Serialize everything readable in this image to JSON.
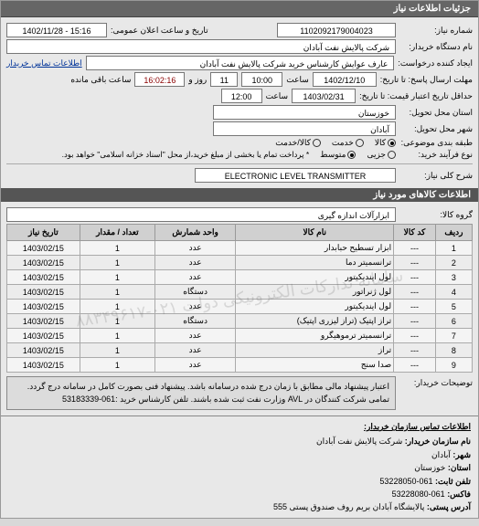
{
  "title_bar": "جزئیات اطلاعات نیاز",
  "header": {
    "req_no_label": "شماره نیاز:",
    "req_no": "1102092179004023",
    "announce_label": "تاریخ و ساعت اعلان عمومی:",
    "announce_value": "15:16 - 1402/11/28",
    "buyer_label": "نام دستگاه خریدار:",
    "buyer_value": "شرکت پالایش نفت آبادان",
    "creator_label": "ایجاد کننده درخواست:",
    "creator_value": "عارف عوایش کارشناس خرید شرکت پالایش نفت آبادان",
    "contact_link_label": "اطلاعات تماس خریدار",
    "deadline_send_label": "مهلت ارسال پاسخ: تا تاریخ:",
    "deadline_send_date": "1402/12/10",
    "deadline_send_time_label": "ساعت",
    "deadline_send_time": "10:00",
    "remain_label1": "روز و",
    "remain_days": "11",
    "remain_label2": "ساعت باقی مانده",
    "remain_time": "16:02:16",
    "validity_label": "حداقل تاریخ اعتبار قیمت: تا تاریخ:",
    "validity_date": "1403/02/31",
    "validity_time_label": "ساعت",
    "validity_time": "12:00",
    "province_label": "استان محل تحویل:",
    "province_value": "خوزستان",
    "city_label": "شهر محل تحویل:",
    "city_value": "آبادان",
    "group_label": "طبقه بندی موضوعی:",
    "radio_goods": "کالا",
    "radio_service": "خدمت",
    "radio_goods_service": "کالا/خدمت",
    "process_label": "نوع فرآیند خرید:",
    "radio_small": "جزیی",
    "radio_medium": "متوسط",
    "process_note": "* پرداخت تمام یا بخشی از مبلغ خرید،از محل \"اسناد خزانه اسلامی\" خواهد بود.",
    "need_title_label": "شرح کلی نیاز:",
    "need_title_value": "ELECTRONIC LEVEL TRANSMITTER"
  },
  "goods_section_title": "اطلاعات کالاهای مورد نیاز",
  "goods_group_label": "گروه کالا:",
  "goods_group_value": "ابزارآلات اندازه گیری",
  "table": {
    "columns": [
      "ردیف",
      "کد کالا",
      "نام کالا",
      "واحد شمارش",
      "تعداد / مقدار",
      "تاریخ نیاز"
    ],
    "rows": [
      [
        "1",
        "---",
        "ابزار تسطیح حبابدار",
        "عدد",
        "1",
        "1403/02/15"
      ],
      [
        "2",
        "---",
        "ترانسمیتر دما",
        "عدد",
        "1",
        "1403/02/15"
      ],
      [
        "3",
        "---",
        "لول ایندیکیتور",
        "عدد",
        "1",
        "1403/02/15"
      ],
      [
        "4",
        "---",
        "لول ژنراتور",
        "دستگاه",
        "1",
        "1403/02/15"
      ],
      [
        "5",
        "---",
        "لول ایندیکیتور",
        "عدد",
        "1",
        "1403/02/15"
      ],
      [
        "6",
        "---",
        "تراز اپتیک (تراز لیزری اپتیک)",
        "دستگاه",
        "1",
        "1403/02/15"
      ],
      [
        "7",
        "---",
        "ترانسمیتر ترموهیگرو",
        "عدد",
        "1",
        "1403/02/15"
      ],
      [
        "8",
        "---",
        "تراز",
        "عدد",
        "1",
        "1403/02/15"
      ],
      [
        "9",
        "---",
        "صدا سنج",
        "عدد",
        "1",
        "1403/02/15"
      ]
    ],
    "watermark": "سامانه تدارکات الکترونیکی دولت\n۰۲۱-۸۸۳۴۹۶۱۷"
  },
  "desc_label": "توضیحات خریدار:",
  "desc_text": "اعتبار پیشنهاد مالی مطابق با زمان درج شده درسامانه باشد. پیشنهاد فنی بصورت کامل در سامانه درج گردد. تمامی شرکت کنندگان در AVL وزارت نفت ثبت شده باشند. تلفن کارشناس خرید :061-53183339",
  "contact_header": "اطلاعات تماس سازمان خریدار:",
  "contact": {
    "org_label": "نام سازمان خریدار:",
    "org_value": "شرکت پالایش نفت آبادان",
    "city_label": "شهر:",
    "city_value": "آبادان",
    "province_label": "استان:",
    "province_value": "خوزستان",
    "phone_label": "تلفن ثابت:",
    "phone_value": "061-53228050",
    "fax_label": "فاکس:",
    "fax_value": "061-53228080",
    "address_label": "آدرس پستی:",
    "address_value": "پالایشگاه آبادان بریم روف صندوق پستی 555"
  },
  "colors": {
    "header_bg": "#666666",
    "panel_bg": "#e8e8e8",
    "field_border": "#777777",
    "remain_time_color": "#8b0000"
  }
}
